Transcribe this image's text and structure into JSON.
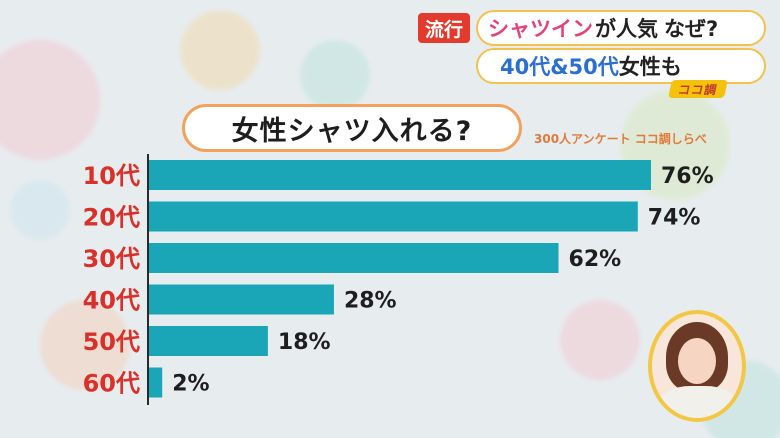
{
  "caption": {
    "tag": "流行",
    "line1_part1": "シャツイン",
    "line1_part2": "が人気",
    "line1_part3": "なぜ?",
    "line2_part1": "40代&50代",
    "line2_part2": "女性も",
    "logo": "ココ調"
  },
  "title": "女性シャツ入れる?",
  "source": "300人アンケート ココ調しらべ",
  "colors": {
    "bar": "#1aa6b7",
    "category_label": "#d9302a",
    "value_label": "#1e1e1e",
    "tag_bg": "#e23b2e",
    "title_border": "#f2a25c"
  },
  "chart_data": {
    "type": "bar",
    "orientation": "horizontal",
    "title": "女性シャツ入れる?",
    "categories": [
      "10代",
      "20代",
      "30代",
      "40代",
      "50代",
      "60代"
    ],
    "values": [
      76,
      74,
      62,
      28,
      18,
      2
    ],
    "value_labels": [
      "76%",
      "74%",
      "62%",
      "28%",
      "18%",
      "2%"
    ],
    "unit": "%",
    "xlim": [
      0,
      100
    ],
    "grid": false,
    "legend": "none"
  }
}
